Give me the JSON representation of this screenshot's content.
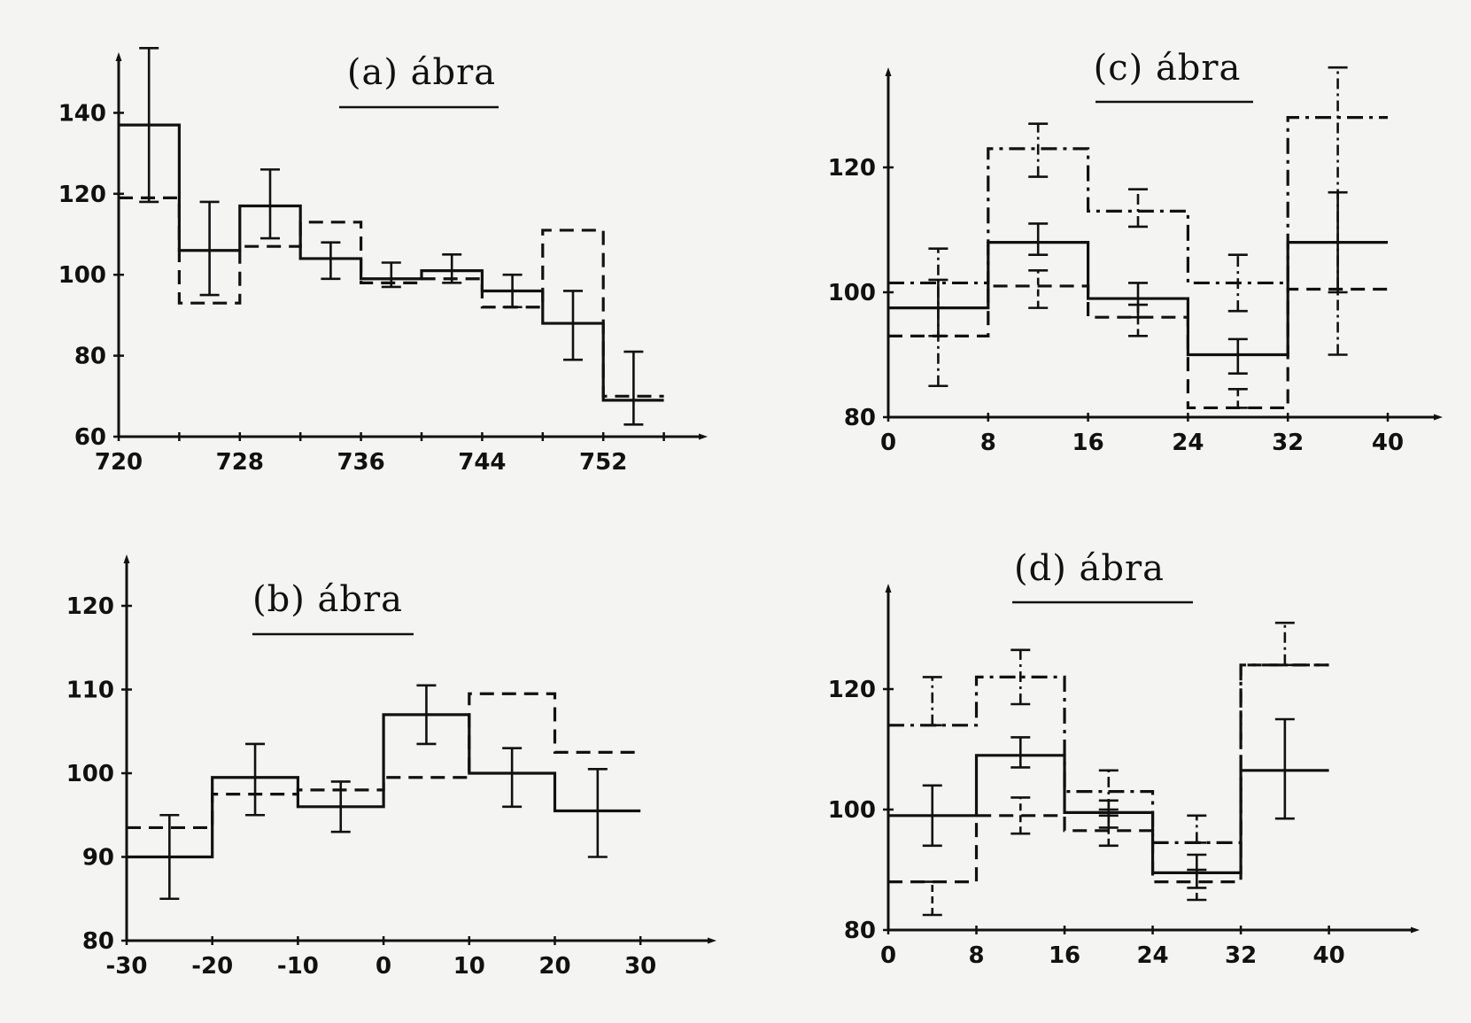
{
  "chart_data": [
    {
      "type": "line",
      "id": "a",
      "title": "(a) ábra",
      "xlim": [
        720,
        758
      ],
      "ylim": [
        60,
        150
      ],
      "x_ticks": [
        720,
        728,
        736,
        744,
        752
      ],
      "y_ticks": [
        60,
        80,
        100,
        120,
        140
      ],
      "series": [
        {
          "style": "solid",
          "steps": [
            {
              "x0": 720,
              "x1": 724,
              "y": 137
            },
            {
              "x0": 724,
              "x1": 728,
              "y": 106
            },
            {
              "x0": 728,
              "x1": 732,
              "y": 117
            },
            {
              "x0": 732,
              "x1": 736,
              "y": 104
            },
            {
              "x0": 736,
              "x1": 740,
              "y": 99
            },
            {
              "x0": 740,
              "x1": 744,
              "y": 101
            },
            {
              "x0": 744,
              "x1": 748,
              "y": 96
            },
            {
              "x0": 748,
              "x1": 752,
              "y": 88
            },
            {
              "x0": 752,
              "x1": 756,
              "y": 69
            }
          ],
          "errors": [
            {
              "x": 722,
              "lo": 118,
              "hi": 156
            },
            {
              "x": 726,
              "lo": 95,
              "hi": 118
            },
            {
              "x": 730,
              "lo": 109,
              "hi": 126
            },
            {
              "x": 734,
              "lo": 99,
              "hi": 108
            },
            {
              "x": 738,
              "lo": 97,
              "hi": 103
            },
            {
              "x": 742,
              "lo": 98,
              "hi": 105
            },
            {
              "x": 746,
              "lo": 92,
              "hi": 100
            },
            {
              "x": 750,
              "lo": 79,
              "hi": 96
            },
            {
              "x": 754,
              "lo": 63,
              "hi": 81
            }
          ]
        },
        {
          "style": "dashed",
          "steps": [
            {
              "x0": 720,
              "x1": 724,
              "y": 119
            },
            {
              "x0": 724,
              "x1": 728,
              "y": 93
            },
            {
              "x0": 728,
              "x1": 732,
              "y": 107
            },
            {
              "x0": 732,
              "x1": 736,
              "y": 113
            },
            {
              "x0": 736,
              "x1": 740,
              "y": 98
            },
            {
              "x0": 740,
              "x1": 744,
              "y": 99
            },
            {
              "x0": 744,
              "x1": 748,
              "y": 92
            },
            {
              "x0": 748,
              "x1": 752,
              "y": 111
            },
            {
              "x0": 752,
              "x1": 756,
              "y": 70
            }
          ],
          "errors": []
        }
      ]
    },
    {
      "type": "line",
      "id": "b",
      "title": "(b) ábra",
      "xlim": [
        -30,
        34
      ],
      "ylim": [
        80,
        124
      ],
      "x_ticks": [
        -30,
        -20,
        -10,
        0,
        10,
        20,
        30
      ],
      "x_tick_labels": [
        "-30",
        "-20",
        "-10",
        "0",
        "10",
        "20",
        "30"
      ],
      "y_ticks": [
        80,
        90,
        100,
        110,
        120
      ],
      "series": [
        {
          "style": "solid",
          "steps": [
            {
              "x0": -30,
              "x1": -20,
              "y": 90
            },
            {
              "x0": -20,
              "x1": -10,
              "y": 99.5
            },
            {
              "x0": -10,
              "x1": 0,
              "y": 96
            },
            {
              "x0": 0,
              "x1": 10,
              "y": 107
            },
            {
              "x0": 10,
              "x1": 20,
              "y": 100
            },
            {
              "x0": 20,
              "x1": 30,
              "y": 95.5
            }
          ],
          "errors": [
            {
              "x": -25,
              "lo": 85,
              "hi": 95
            },
            {
              "x": -15,
              "lo": 95,
              "hi": 103.5
            },
            {
              "x": -5,
              "lo": 93,
              "hi": 99
            },
            {
              "x": 5,
              "lo": 103.5,
              "hi": 110.5
            },
            {
              "x": 15,
              "lo": 96,
              "hi": 103
            },
            {
              "x": 25,
              "lo": 90,
              "hi": 100.5
            }
          ]
        },
        {
          "style": "dashed",
          "steps": [
            {
              "x0": -30,
              "x1": -20,
              "y": 93.5
            },
            {
              "x0": -20,
              "x1": -10,
              "y": 97.5
            },
            {
              "x0": -10,
              "x1": 0,
              "y": 98
            },
            {
              "x0": 0,
              "x1": 10,
              "y": 99.5
            },
            {
              "x0": 10,
              "x1": 20,
              "y": 109.5
            },
            {
              "x0": 20,
              "x1": 30,
              "y": 102.5
            }
          ],
          "errors": []
        }
      ]
    },
    {
      "type": "line",
      "id": "c",
      "title": "(c) ábra",
      "xlim": [
        0,
        43
      ],
      "ylim": [
        80,
        138
      ],
      "x_ticks": [
        0,
        8,
        16,
        24,
        32,
        40
      ],
      "y_ticks": [
        80,
        100,
        120
      ],
      "series": [
        {
          "style": "solid",
          "steps": [
            {
              "x0": 0,
              "x1": 8,
              "y": 97.5
            },
            {
              "x0": 8,
              "x1": 16,
              "y": 108
            },
            {
              "x0": 16,
              "x1": 24,
              "y": 99
            },
            {
              "x0": 24,
              "x1": 32,
              "y": 90
            },
            {
              "x0": 32,
              "x1": 40,
              "y": 108
            }
          ],
          "errors": [
            {
              "x": 4,
              "lo": 93,
              "hi": 102
            },
            {
              "x": 12,
              "lo": 106,
              "hi": 111
            },
            {
              "x": 20,
              "lo": 96,
              "hi": 101.5
            },
            {
              "x": 28,
              "lo": 87,
              "hi": 92.5
            },
            {
              "x": 36,
              "lo": 100,
              "hi": 116
            }
          ]
        },
        {
          "style": "dashed",
          "steps": [
            {
              "x0": 0,
              "x1": 8,
              "y": 93
            },
            {
              "x0": 8,
              "x1": 16,
              "y": 101
            },
            {
              "x0": 16,
              "x1": 24,
              "y": 96
            },
            {
              "x0": 24,
              "x1": 32,
              "y": 81.5
            },
            {
              "x0": 32,
              "x1": 40,
              "y": 100.5
            }
          ],
          "errors": [
            {
              "x": 12,
              "lo": 97.5,
              "hi": 103.5
            },
            {
              "x": 20,
              "lo": 93,
              "hi": 98
            },
            {
              "x": 28,
              "lo": 81.5,
              "hi": 84.5
            }
          ]
        },
        {
          "style": "dashdot",
          "steps": [
            {
              "x0": 0,
              "x1": 8,
              "y": 101.5
            },
            {
              "x0": 8,
              "x1": 16,
              "y": 123
            },
            {
              "x0": 16,
              "x1": 24,
              "y": 113
            },
            {
              "x0": 24,
              "x1": 32,
              "y": 101.5
            },
            {
              "x0": 32,
              "x1": 40,
              "y": 128
            }
          ],
          "errors": [
            {
              "x": 4,
              "lo": 85,
              "hi": 107
            },
            {
              "x": 12,
              "lo": 118.5,
              "hi": 127
            },
            {
              "x": 20,
              "lo": 110.5,
              "hi": 116.5
            },
            {
              "x": 28,
              "lo": 97,
              "hi": 106
            },
            {
              "x": 36,
              "lo": 90,
              "hi": 136
            }
          ]
        }
      ]
    },
    {
      "type": "line",
      "id": "d",
      "title": "(d) ábra",
      "xlim": [
        0,
        43
      ],
      "ylim": [
        80,
        136
      ],
      "x_ticks": [
        0,
        8,
        16,
        24,
        32,
        40
      ],
      "y_ticks": [
        80,
        100,
        120
      ],
      "series": [
        {
          "style": "solid",
          "steps": [
            {
              "x0": 0,
              "x1": 8,
              "y": 99
            },
            {
              "x0": 8,
              "x1": 16,
              "y": 109
            },
            {
              "x0": 16,
              "x1": 24,
              "y": 99.5
            },
            {
              "x0": 24,
              "x1": 32,
              "y": 89.5
            },
            {
              "x0": 32,
              "x1": 40,
              "y": 106.5
            }
          ],
          "errors": [
            {
              "x": 4,
              "lo": 94,
              "hi": 104
            },
            {
              "x": 12,
              "lo": 107,
              "hi": 112
            },
            {
              "x": 20,
              "lo": 97,
              "hi": 101.5
            },
            {
              "x": 28,
              "lo": 87,
              "hi": 92.5
            },
            {
              "x": 36,
              "lo": 98.5,
              "hi": 115
            }
          ]
        },
        {
          "style": "dashed",
          "steps": [
            {
              "x0": 0,
              "x1": 8,
              "y": 88
            },
            {
              "x0": 8,
              "x1": 16,
              "y": 99
            },
            {
              "x0": 16,
              "x1": 24,
              "y": 96.5
            },
            {
              "x0": 24,
              "x1": 32,
              "y": 88
            },
            {
              "x0": 32,
              "x1": 40,
              "y": 124
            }
          ],
          "errors": [
            {
              "x": 4,
              "lo": 82.5,
              "hi": 88
            },
            {
              "x": 12,
              "lo": 96,
              "hi": 102
            },
            {
              "x": 20,
              "lo": 94,
              "hi": 99
            },
            {
              "x": 28,
              "lo": 85,
              "hi": 90
            }
          ]
        },
        {
          "style": "dashdot",
          "steps": [
            {
              "x0": 0,
              "x1": 8,
              "y": 114
            },
            {
              "x0": 8,
              "x1": 16,
              "y": 122
            },
            {
              "x0": 16,
              "x1": 24,
              "y": 103
            },
            {
              "x0": 24,
              "x1": 32,
              "y": 94.5
            },
            {
              "x0": 32,
              "x1": 40,
              "y": 124
            }
          ],
          "errors": [
            {
              "x": 4,
              "lo": 114,
              "hi": 122
            },
            {
              "x": 12,
              "lo": 117.5,
              "hi": 126.5
            },
            {
              "x": 20,
              "lo": 100,
              "hi": 106.5
            },
            {
              "x": 28,
              "lo": 94.5,
              "hi": 99
            },
            {
              "x": 36,
              "lo": 124,
              "hi": 131
            }
          ]
        }
      ]
    }
  ]
}
